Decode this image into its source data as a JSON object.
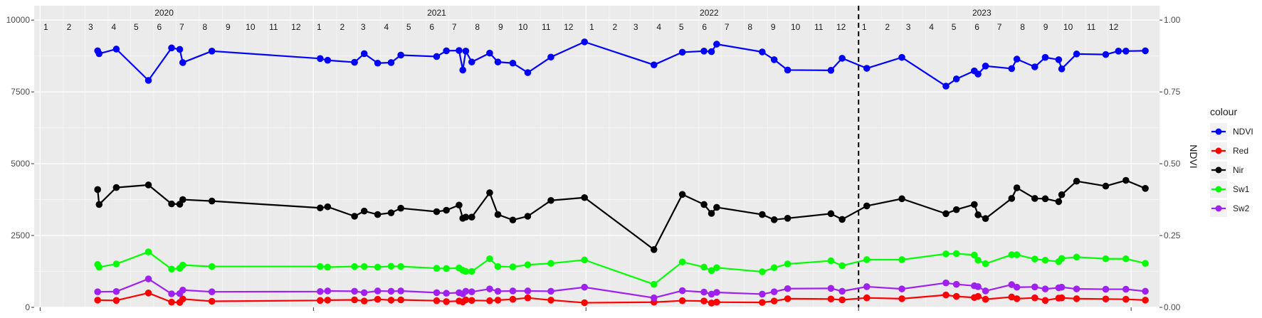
{
  "chart_data": {
    "type": "line",
    "title": "",
    "xlabel": "",
    "ylabel_left": "",
    "ylabel_right": "NDVI",
    "ylim_left": [
      0,
      10000
    ],
    "ylim_right": [
      0,
      1
    ],
    "left_ticks": [
      "0",
      "2500",
      "5000",
      "7500",
      "10000"
    ],
    "right_ticks": [
      "0.00",
      "0.25",
      "0.50",
      "0.75",
      "1.00"
    ],
    "grid": true,
    "background": "#EBEBEB",
    "year_labels": [
      {
        "label": "2020",
        "date": "2020-06-15"
      },
      {
        "label": "2021",
        "date": "2021-06-15"
      },
      {
        "label": "2022",
        "date": "2022-06-15"
      },
      {
        "label": "2023",
        "date": "2023-06-15"
      }
    ],
    "month_labels_range": {
      "start": "2020-01",
      "end": "2023-12"
    },
    "vline": {
      "date": "2023-01-01",
      "style": "dashed",
      "color": "#000000"
    },
    "legend": {
      "title": "colour",
      "position": "right"
    },
    "series": [
      {
        "name": "NDVI",
        "color": "#0000FF",
        "axis": "right",
        "points": [
          [
            "2020-03-18",
            0.893
          ],
          [
            "2020-03-20",
            0.883
          ],
          [
            "2020-04-12",
            0.899
          ],
          [
            "2020-05-25",
            0.79
          ],
          [
            "2020-06-25",
            0.903
          ],
          [
            "2020-07-06",
            0.898
          ],
          [
            "2020-07-10",
            0.852
          ],
          [
            "2020-08-18",
            0.892
          ],
          [
            "2021-01-10",
            0.866
          ],
          [
            "2021-01-20",
            0.86
          ],
          [
            "2021-02-25",
            0.853
          ],
          [
            "2021-03-10",
            0.883
          ],
          [
            "2021-03-28",
            0.85
          ],
          [
            "2021-04-15",
            0.852
          ],
          [
            "2021-04-28",
            0.878
          ],
          [
            "2021-06-15",
            0.873
          ],
          [
            "2021-06-28",
            0.893
          ],
          [
            "2021-07-15",
            0.894
          ],
          [
            "2021-07-20",
            0.826
          ],
          [
            "2021-07-24",
            0.892
          ],
          [
            "2021-08-01",
            0.854
          ],
          [
            "2021-08-25",
            0.885
          ],
          [
            "2021-09-05",
            0.854
          ],
          [
            "2021-09-25",
            0.85
          ],
          [
            "2021-10-15",
            0.817
          ],
          [
            "2021-11-15",
            0.871
          ],
          [
            "2021-12-30",
            0.924
          ],
          [
            "2022-04-02",
            0.844
          ],
          [
            "2022-05-10",
            0.888
          ],
          [
            "2022-06-08",
            0.892
          ],
          [
            "2022-06-18",
            0.89
          ],
          [
            "2022-06-25",
            0.916
          ],
          [
            "2022-08-25",
            0.889
          ],
          [
            "2022-09-10",
            0.862
          ],
          [
            "2022-09-28",
            0.826
          ],
          [
            "2022-11-25",
            0.825
          ],
          [
            "2022-12-10",
            0.867
          ],
          [
            "2023-01-12",
            0.832
          ],
          [
            "2023-02-28",
            0.87
          ],
          [
            "2023-04-28",
            0.77
          ],
          [
            "2023-05-12",
            0.795
          ],
          [
            "2023-06-05",
            0.823
          ],
          [
            "2023-06-10",
            0.812
          ],
          [
            "2023-06-20",
            0.84
          ],
          [
            "2023-07-25",
            0.831
          ],
          [
            "2023-08-01",
            0.864
          ],
          [
            "2023-08-25",
            0.837
          ],
          [
            "2023-09-08",
            0.87
          ],
          [
            "2023-09-26",
            0.862
          ],
          [
            "2023-09-30",
            0.83
          ],
          [
            "2023-10-20",
            0.882
          ],
          [
            "2023-11-28",
            0.88
          ],
          [
            "2023-12-15",
            0.892
          ],
          [
            "2023-12-25",
            0.892
          ],
          [
            "2024-01-20",
            0.893
          ]
        ]
      },
      {
        "name": "Red",
        "color": "#FF0000",
        "axis": "left",
        "points": [
          [
            "2020-03-18",
            250
          ],
          [
            "2020-04-12",
            240
          ],
          [
            "2020-05-25",
            500
          ],
          [
            "2020-06-25",
            180
          ],
          [
            "2020-07-06",
            170
          ],
          [
            "2020-07-10",
            290
          ],
          [
            "2020-08-18",
            210
          ],
          [
            "2021-01-10",
            240
          ],
          [
            "2021-01-20",
            250
          ],
          [
            "2021-02-25",
            260
          ],
          [
            "2021-03-10",
            220
          ],
          [
            "2021-03-28",
            280
          ],
          [
            "2021-04-15",
            250
          ],
          [
            "2021-04-28",
            260
          ],
          [
            "2021-06-15",
            230
          ],
          [
            "2021-06-28",
            200
          ],
          [
            "2021-07-15",
            220
          ],
          [
            "2021-07-20",
            190
          ],
          [
            "2021-07-24",
            260
          ],
          [
            "2021-08-01",
            240
          ],
          [
            "2021-08-25",
            230
          ],
          [
            "2021-09-05",
            250
          ],
          [
            "2021-09-25",
            280
          ],
          [
            "2021-10-15",
            330
          ],
          [
            "2021-11-15",
            250
          ],
          [
            "2021-12-30",
            160
          ],
          [
            "2022-04-02",
            180
          ],
          [
            "2022-05-10",
            230
          ],
          [
            "2022-06-08",
            220
          ],
          [
            "2022-06-18",
            150
          ],
          [
            "2022-06-25",
            180
          ],
          [
            "2022-08-25",
            170
          ],
          [
            "2022-09-10",
            220
          ],
          [
            "2022-09-28",
            300
          ],
          [
            "2022-11-25",
            290
          ],
          [
            "2022-12-10",
            260
          ],
          [
            "2023-01-12",
            330
          ],
          [
            "2023-02-28",
            300
          ],
          [
            "2023-04-28",
            430
          ],
          [
            "2023-05-12",
            380
          ],
          [
            "2023-06-05",
            340
          ],
          [
            "2023-06-10",
            380
          ],
          [
            "2023-06-20",
            280
          ],
          [
            "2023-07-25",
            360
          ],
          [
            "2023-08-01",
            300
          ],
          [
            "2023-08-25",
            330
          ],
          [
            "2023-09-08",
            240
          ],
          [
            "2023-09-26",
            320
          ],
          [
            "2023-09-30",
            330
          ],
          [
            "2023-10-20",
            300
          ],
          [
            "2023-11-28",
            290
          ],
          [
            "2023-12-25",
            280
          ],
          [
            "2024-01-20",
            250
          ]
        ]
      },
      {
        "name": "Nir",
        "color": "#000000",
        "axis": "left",
        "points": [
          [
            "2020-03-18",
            4100
          ],
          [
            "2020-03-20",
            3580
          ],
          [
            "2020-04-12",
            4170
          ],
          [
            "2020-05-25",
            4260
          ],
          [
            "2020-06-25",
            3600
          ],
          [
            "2020-07-06",
            3590
          ],
          [
            "2020-07-10",
            3750
          ],
          [
            "2020-08-18",
            3700
          ],
          [
            "2021-01-10",
            3460
          ],
          [
            "2021-01-20",
            3500
          ],
          [
            "2021-02-25",
            3170
          ],
          [
            "2021-03-10",
            3350
          ],
          [
            "2021-03-28",
            3230
          ],
          [
            "2021-04-15",
            3290
          ],
          [
            "2021-04-28",
            3450
          ],
          [
            "2021-06-15",
            3330
          ],
          [
            "2021-06-28",
            3380
          ],
          [
            "2021-07-15",
            3560
          ],
          [
            "2021-07-20",
            3100
          ],
          [
            "2021-07-24",
            3140
          ],
          [
            "2021-08-01",
            3140
          ],
          [
            "2021-08-25",
            3990
          ],
          [
            "2021-09-05",
            3230
          ],
          [
            "2021-09-25",
            3040
          ],
          [
            "2021-10-15",
            3170
          ],
          [
            "2021-11-15",
            3720
          ],
          [
            "2021-12-30",
            3820
          ],
          [
            "2022-04-02",
            2010
          ],
          [
            "2022-05-10",
            3930
          ],
          [
            "2022-06-08",
            3580
          ],
          [
            "2022-06-18",
            3270
          ],
          [
            "2022-06-25",
            3480
          ],
          [
            "2022-08-25",
            3230
          ],
          [
            "2022-09-10",
            3050
          ],
          [
            "2022-09-28",
            3100
          ],
          [
            "2022-11-25",
            3260
          ],
          [
            "2022-12-10",
            3060
          ],
          [
            "2023-01-12",
            3530
          ],
          [
            "2023-02-28",
            3780
          ],
          [
            "2023-04-28",
            3260
          ],
          [
            "2023-05-12",
            3400
          ],
          [
            "2023-06-05",
            3580
          ],
          [
            "2023-06-10",
            3220
          ],
          [
            "2023-06-20",
            3090
          ],
          [
            "2023-07-25",
            3790
          ],
          [
            "2023-08-01",
            4160
          ],
          [
            "2023-08-25",
            3790
          ],
          [
            "2023-09-08",
            3780
          ],
          [
            "2023-09-26",
            3680
          ],
          [
            "2023-09-30",
            3920
          ],
          [
            "2023-10-20",
            4390
          ],
          [
            "2023-11-28",
            4220
          ],
          [
            "2023-12-25",
            4420
          ],
          [
            "2024-01-20",
            4140
          ]
        ]
      },
      {
        "name": "Sw1",
        "color": "#00FF00",
        "axis": "left",
        "points": [
          [
            "2020-03-18",
            1490
          ],
          [
            "2020-03-20",
            1400
          ],
          [
            "2020-04-12",
            1510
          ],
          [
            "2020-05-25",
            1930
          ],
          [
            "2020-06-25",
            1330
          ],
          [
            "2020-07-06",
            1360
          ],
          [
            "2020-07-10",
            1470
          ],
          [
            "2020-08-18",
            1420
          ],
          [
            "2021-01-10",
            1420
          ],
          [
            "2021-01-20",
            1400
          ],
          [
            "2021-02-25",
            1420
          ],
          [
            "2021-03-10",
            1420
          ],
          [
            "2021-03-28",
            1400
          ],
          [
            "2021-04-15",
            1430
          ],
          [
            "2021-04-28",
            1420
          ],
          [
            "2021-06-15",
            1360
          ],
          [
            "2021-06-28",
            1350
          ],
          [
            "2021-07-15",
            1370
          ],
          [
            "2021-07-20",
            1290
          ],
          [
            "2021-07-24",
            1250
          ],
          [
            "2021-08-01",
            1250
          ],
          [
            "2021-08-25",
            1690
          ],
          [
            "2021-09-05",
            1420
          ],
          [
            "2021-09-25",
            1410
          ],
          [
            "2021-10-15",
            1480
          ],
          [
            "2021-11-15",
            1530
          ],
          [
            "2021-12-30",
            1650
          ],
          [
            "2022-04-02",
            800
          ],
          [
            "2022-05-10",
            1580
          ],
          [
            "2022-06-08",
            1400
          ],
          [
            "2022-06-18",
            1280
          ],
          [
            "2022-06-25",
            1380
          ],
          [
            "2022-08-25",
            1240
          ],
          [
            "2022-09-10",
            1380
          ],
          [
            "2022-09-28",
            1510
          ],
          [
            "2022-11-25",
            1620
          ],
          [
            "2022-12-10",
            1450
          ],
          [
            "2023-01-12",
            1660
          ],
          [
            "2023-02-28",
            1660
          ],
          [
            "2023-04-28",
            1860
          ],
          [
            "2023-05-12",
            1870
          ],
          [
            "2023-06-05",
            1820
          ],
          [
            "2023-06-10",
            1640
          ],
          [
            "2023-06-20",
            1520
          ],
          [
            "2023-07-25",
            1830
          ],
          [
            "2023-08-01",
            1830
          ],
          [
            "2023-08-25",
            1680
          ],
          [
            "2023-09-08",
            1640
          ],
          [
            "2023-09-26",
            1590
          ],
          [
            "2023-09-30",
            1700
          ],
          [
            "2023-10-20",
            1750
          ],
          [
            "2023-11-28",
            1690
          ],
          [
            "2023-12-25",
            1690
          ],
          [
            "2024-01-20",
            1530
          ]
        ]
      },
      {
        "name": "Sw2",
        "color": "#A020F0",
        "axis": "left",
        "points": [
          [
            "2020-03-18",
            540
          ],
          [
            "2020-04-12",
            550
          ],
          [
            "2020-05-25",
            990
          ],
          [
            "2020-06-25",
            470
          ],
          [
            "2020-07-06",
            480
          ],
          [
            "2020-07-10",
            600
          ],
          [
            "2020-08-18",
            540
          ],
          [
            "2021-01-10",
            550
          ],
          [
            "2021-01-20",
            570
          ],
          [
            "2021-02-25",
            560
          ],
          [
            "2021-03-10",
            510
          ],
          [
            "2021-03-28",
            570
          ],
          [
            "2021-04-15",
            560
          ],
          [
            "2021-04-28",
            570
          ],
          [
            "2021-06-15",
            510
          ],
          [
            "2021-06-28",
            490
          ],
          [
            "2021-07-15",
            510
          ],
          [
            "2021-07-20",
            470
          ],
          [
            "2021-07-24",
            560
          ],
          [
            "2021-08-01",
            540
          ],
          [
            "2021-08-25",
            640
          ],
          [
            "2021-09-05",
            560
          ],
          [
            "2021-09-25",
            570
          ],
          [
            "2021-10-15",
            570
          ],
          [
            "2021-11-15",
            560
          ],
          [
            "2021-12-30",
            700
          ],
          [
            "2022-04-02",
            330
          ],
          [
            "2022-05-10",
            580
          ],
          [
            "2022-06-08",
            530
          ],
          [
            "2022-06-18",
            460
          ],
          [
            "2022-06-25",
            520
          ],
          [
            "2022-08-25",
            460
          ],
          [
            "2022-09-10",
            540
          ],
          [
            "2022-09-28",
            650
          ],
          [
            "2022-11-25",
            660
          ],
          [
            "2022-12-10",
            560
          ],
          [
            "2023-01-12",
            720
          ],
          [
            "2023-02-28",
            640
          ],
          [
            "2023-04-28",
            850
          ],
          [
            "2023-05-12",
            800
          ],
          [
            "2023-06-05",
            750
          ],
          [
            "2023-06-10",
            720
          ],
          [
            "2023-06-20",
            570
          ],
          [
            "2023-07-25",
            790
          ],
          [
            "2023-08-01",
            700
          ],
          [
            "2023-08-25",
            710
          ],
          [
            "2023-09-08",
            640
          ],
          [
            "2023-09-26",
            680
          ],
          [
            "2023-09-30",
            700
          ],
          [
            "2023-10-20",
            640
          ],
          [
            "2023-11-28",
            630
          ],
          [
            "2023-12-25",
            630
          ],
          [
            "2024-01-20",
            560
          ]
        ]
      }
    ]
  }
}
